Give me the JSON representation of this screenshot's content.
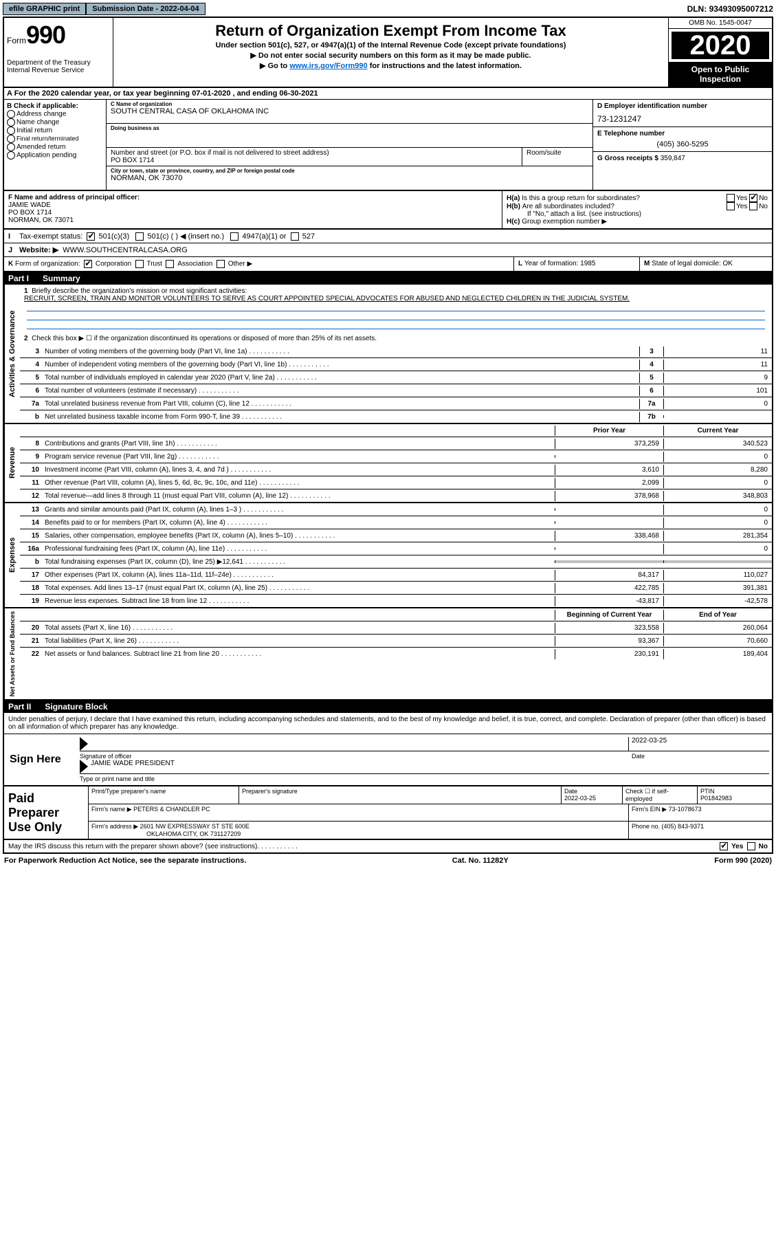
{
  "topbar": {
    "efile": "efile GRAPHIC print",
    "submission_label": "Submission Date - ",
    "submission_date": "2022-04-04",
    "dln_label": "DLN: ",
    "dln": "93493095007212"
  },
  "header": {
    "form_label": "Form",
    "form_num": "990",
    "dept": "Department of the Treasury\nInternal Revenue Service",
    "title": "Return of Organization Exempt From Income Tax",
    "subtitle": "Under section 501(c), 527, or 4947(a)(1) of the Internal Revenue Code (except private foundations)",
    "note1": "▶ Do not enter social security numbers on this form as it may be made public.",
    "note2_pre": "▶ Go to ",
    "note2_link": "www.irs.gov/Form990",
    "note2_post": " for instructions and the latest information.",
    "omb": "OMB No. 1545-0047",
    "year": "2020",
    "open": "Open to Public Inspection"
  },
  "rowA": {
    "text": "A For the 2020 calendar year, or tax year beginning 07-01-2020    , and ending 06-30-2021"
  },
  "colB": {
    "hdr": "B Check if applicable:",
    "opts": [
      "Address change",
      "Name change",
      "Initial return",
      "Final return/terminated",
      "Amended return",
      "Application pending"
    ]
  },
  "colC": {
    "name_lbl": "C Name of organization",
    "name": "SOUTH CENTRAL CASA OF OKLAHOMA INC",
    "dba_lbl": "Doing business as",
    "dba": "",
    "addr_lbl": "Number and street (or P.O. box if mail is not delivered to street address)",
    "room_lbl": "Room/suite",
    "addr": "PO BOX 1714",
    "city_lbl": "City or town, state or province, country, and ZIP or foreign postal code",
    "city": "NORMAN, OK  73070"
  },
  "colD": {
    "ein_lbl": "D Employer identification number",
    "ein": "73-1231247",
    "phone_lbl": "E Telephone number",
    "phone": "(405) 360-5295",
    "gross_lbl": "G Gross receipts $ ",
    "gross": "359,847"
  },
  "rowF": {
    "lbl": "F Name and address of principal officer:",
    "name": "JAMIE WADE",
    "addr1": "PO BOX 1714",
    "addr2": "NORMAN, OK  73071"
  },
  "rowH": {
    "ha_lbl": "H(a)",
    "ha_text": "Is this a group return for subordinates?",
    "yes": "Yes",
    "no": "No",
    "hb_lbl": "H(b)",
    "hb_text": "Are all subordinates included?",
    "hb_note": "If \"No,\" attach a list. (see instructions)",
    "hc_lbl": "H(c)",
    "hc_text": "Group exemption number ▶"
  },
  "rowI": {
    "lbl": "I",
    "text": "Tax-exempt status:",
    "opt1": "501(c)(3)",
    "opt2": "501(c) (  ) ◀ (insert no.)",
    "opt3": "4947(a)(1) or",
    "opt4": "527"
  },
  "rowJ": {
    "lbl": "J",
    "text": "Website: ▶",
    "val": "WWW.SOUTHCENTRALCASA.ORG"
  },
  "rowK": {
    "lbl": "K",
    "text": "Form of organization:",
    "opts": [
      "Corporation",
      "Trust",
      "Association",
      "Other ▶"
    ]
  },
  "rowL": {
    "lbl": "L",
    "text": "Year of formation: ",
    "val": "1985"
  },
  "rowM": {
    "lbl": "M",
    "text": "State of legal domicile: ",
    "val": "OK"
  },
  "part1": {
    "num": "Part I",
    "title": "Summary"
  },
  "governance": {
    "label": "Activities & Governance",
    "r1_num": "1",
    "r1_text": "Briefly describe the organization's mission or most significant activities:",
    "r1_val": "RECRUIT, SCREEN, TRAIN AND MONITOR VOLUNTEERS TO SERVE AS COURT APPOINTED SPECIAL ADVOCATES FOR ABUSED AND NEGLECTED CHILDREN IN THE JUDICIAL SYSTEM.",
    "r2_num": "2",
    "r2_text": "Check this box ▶ ☐  if the organization discontinued its operations or disposed of more than 25% of its net assets.",
    "rows": [
      {
        "n": "3",
        "t": "Number of voting members of the governing body (Part VI, line 1a)",
        "c": "3",
        "v": "11"
      },
      {
        "n": "4",
        "t": "Number of independent voting members of the governing body (Part VI, line 1b)",
        "c": "4",
        "v": "11"
      },
      {
        "n": "5",
        "t": "Total number of individuals employed in calendar year 2020 (Part V, line 2a)",
        "c": "5",
        "v": "9"
      },
      {
        "n": "6",
        "t": "Total number of volunteers (estimate if necessary)",
        "c": "6",
        "v": "101"
      },
      {
        "n": "7a",
        "t": "Total unrelated business revenue from Part VIII, column (C), line 12",
        "c": "7a",
        "v": "0"
      },
      {
        "n": "b",
        "t": "Net unrelated business taxable income from Form 990-T, line 39",
        "c": "7b",
        "v": ""
      }
    ]
  },
  "two_col_hdr": {
    "prior": "Prior Year",
    "current": "Current Year"
  },
  "revenue": {
    "label": "Revenue",
    "rows": [
      {
        "n": "8",
        "t": "Contributions and grants (Part VIII, line 1h)",
        "p": "373,259",
        "c": "340,523"
      },
      {
        "n": "9",
        "t": "Program service revenue (Part VIII, line 2g)",
        "p": "",
        "c": "0"
      },
      {
        "n": "10",
        "t": "Investment income (Part VIII, column (A), lines 3, 4, and 7d )",
        "p": "3,610",
        "c": "8,280"
      },
      {
        "n": "11",
        "t": "Other revenue (Part VIII, column (A), lines 5, 6d, 8c, 9c, 10c, and 11e)",
        "p": "2,099",
        "c": "0"
      },
      {
        "n": "12",
        "t": "Total revenue—add lines 8 through 11 (must equal Part VIII, column (A), line 12)",
        "p": "378,968",
        "c": "348,803"
      }
    ]
  },
  "expenses": {
    "label": "Expenses",
    "rows": [
      {
        "n": "13",
        "t": "Grants and similar amounts paid (Part IX, column (A), lines 1–3 )",
        "p": "",
        "c": "0"
      },
      {
        "n": "14",
        "t": "Benefits paid to or for members (Part IX, column (A), line 4)",
        "p": "",
        "c": "0"
      },
      {
        "n": "15",
        "t": "Salaries, other compensation, employee benefits (Part IX, column (A), lines 5–10)",
        "p": "338,468",
        "c": "281,354"
      },
      {
        "n": "16a",
        "t": "Professional fundraising fees (Part IX, column (A), line 11e)",
        "p": "",
        "c": "0"
      },
      {
        "n": "b",
        "t": "Total fundraising expenses (Part IX, column (D), line 25) ▶12,641",
        "p": "shaded",
        "c": "shaded"
      },
      {
        "n": "17",
        "t": "Other expenses (Part IX, column (A), lines 11a–11d, 11f–24e)",
        "p": "84,317",
        "c": "110,027"
      },
      {
        "n": "18",
        "t": "Total expenses. Add lines 13–17 (must equal Part IX, column (A), line 25)",
        "p": "422,785",
        "c": "391,381"
      },
      {
        "n": "19",
        "t": "Revenue less expenses. Subtract line 18 from line 12",
        "p": "-43,817",
        "c": "-42,578"
      }
    ]
  },
  "balance_hdr": {
    "begin": "Beginning of Current Year",
    "end": "End of Year"
  },
  "netassets": {
    "label": "Net Assets or Fund Balances",
    "rows": [
      {
        "n": "20",
        "t": "Total assets (Part X, line 16)",
        "p": "323,558",
        "c": "260,064"
      },
      {
        "n": "21",
        "t": "Total liabilities (Part X, line 26)",
        "p": "93,367",
        "c": "70,660"
      },
      {
        "n": "22",
        "t": "Net assets or fund balances. Subtract line 21 from line 20",
        "p": "230,191",
        "c": "189,404"
      }
    ]
  },
  "part2": {
    "num": "Part II",
    "title": "Signature Block"
  },
  "sig": {
    "declaration": "Under penalties of perjury, I declare that I have examined this return, including accompanying schedules and statements, and to the best of my knowledge and belief, it is true, correct, and complete. Declaration of preparer (other than officer) is based on all information of which preparer has any knowledge.",
    "sign_here": "Sign Here",
    "sig_line": "Signature of officer",
    "date_lbl": "Date",
    "date": "2022-03-25",
    "name": "JAMIE WADE  PRESIDENT",
    "name_lbl": "Type or print name and title"
  },
  "prep": {
    "label": "Paid Preparer Use Only",
    "r1": {
      "c1_lbl": "Print/Type preparer's name",
      "c2_lbl": "Preparer's signature",
      "c3_lbl": "Date",
      "c3_val": "2022-03-25",
      "c4_lbl": "Check ☐  if self-employed",
      "c5_lbl": "PTIN",
      "c5_val": "P01842983"
    },
    "r2": {
      "firm_lbl": "Firm's name    ▶ ",
      "firm": "PETERS & CHANDLER PC",
      "ein_lbl": "Firm's EIN ▶ ",
      "ein": "73-1078673"
    },
    "r3": {
      "addr_lbl": "Firm's address ▶ ",
      "addr": "2601 NW EXPRESSWAY ST STE 600E",
      "city": "OKLAHOMA CITY, OK  731127209",
      "phone_lbl": "Phone no. ",
      "phone": "(405) 843-9371"
    }
  },
  "discuss": {
    "text": "May the IRS discuss this return with the preparer shown above? (see instructions)",
    "yes": "Yes",
    "no": "No"
  },
  "footer": {
    "left": "For Paperwork Reduction Act Notice, see the separate instructions.",
    "mid": "Cat. No. 11282Y",
    "right": "Form 990 (2020)"
  }
}
